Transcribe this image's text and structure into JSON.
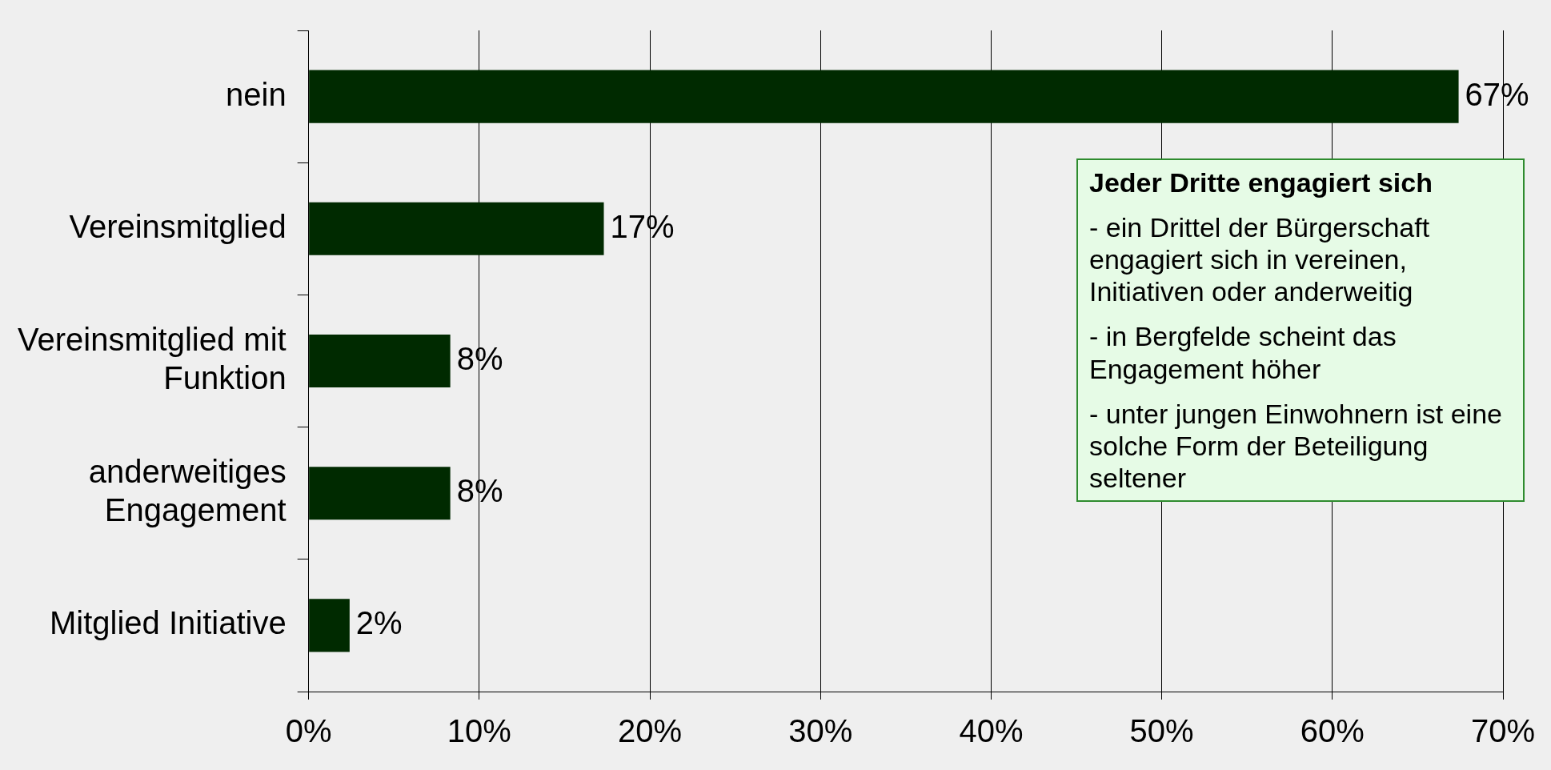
{
  "chart_data": {
    "type": "bar",
    "orientation": "horizontal",
    "categories": [
      "nein",
      "Vereinsmitglied",
      "Vereinsmitglied mit Funktion",
      "anderweitiges Engagement",
      "Mitglied Initiative"
    ],
    "values": [
      67.4,
      17.3,
      8.3,
      8.3,
      2.4
    ],
    "value_labels": [
      "67%",
      "17%",
      "8%",
      "8%",
      "2%"
    ],
    "color": "#002a00",
    "xlim": [
      0,
      70
    ],
    "xticks": [
      {
        "value": 0,
        "label": "0%"
      },
      {
        "value": 10,
        "label": "10%"
      },
      {
        "value": 20,
        "label": "20%"
      },
      {
        "value": 30,
        "label": "30%"
      },
      {
        "value": 40,
        "label": "40%"
      },
      {
        "value": 50,
        "label": "50%"
      },
      {
        "value": 60,
        "label": "60%"
      },
      {
        "value": 70,
        "label": "70%"
      }
    ],
    "grid": "x",
    "legend": false,
    "annotations": [
      "Jeder Dritte engagiert sich",
      "- ein Drittel der Bürgerschaft engagiert sich in vereinen, Initiativen oder anderweitig",
      "- in Bergfelde scheint das Engagement höher",
      "- unter jungen Einwohnern ist eine solche Form der Beteiligung seltener"
    ]
  }
}
